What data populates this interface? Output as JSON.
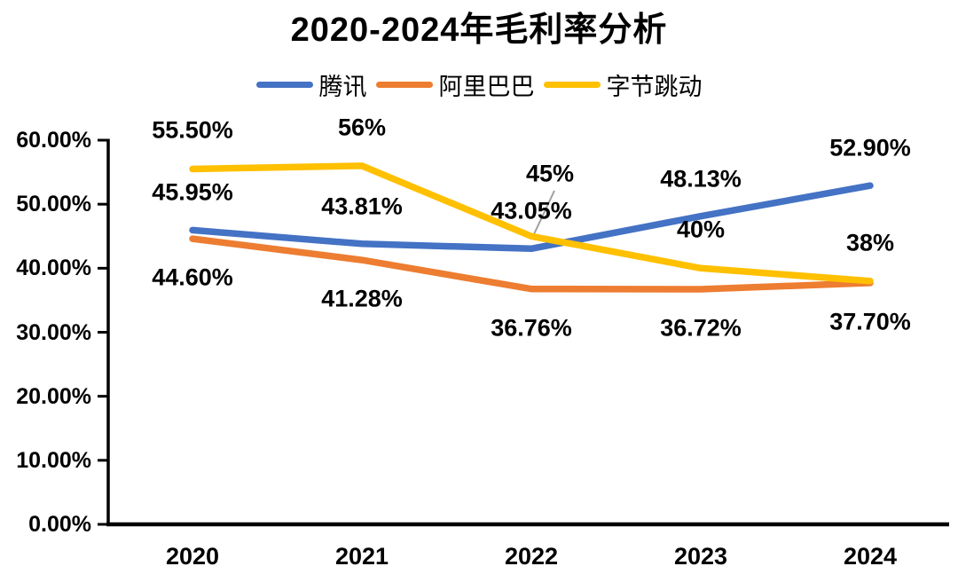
{
  "chart_data": {
    "type": "line",
    "title": "2020-2024年毛利率分析",
    "categories": [
      "2020",
      "2021",
      "2022",
      "2023",
      "2024"
    ],
    "series": [
      {
        "name": "腾讯",
        "color": "#4472C4",
        "values": [
          45.95,
          43.81,
          43.05,
          48.13,
          52.9
        ],
        "labels": [
          "45.95%",
          "43.81%",
          "43.05%",
          "48.13%",
          "52.90%"
        ]
      },
      {
        "name": "阿里巴巴",
        "color": "#ED7D31",
        "values": [
          44.6,
          41.28,
          36.76,
          36.72,
          37.7
        ],
        "labels": [
          "44.60%",
          "41.28%",
          "36.76%",
          "36.72%",
          "37.70%"
        ]
      },
      {
        "name": "字节跳动",
        "color": "#FFC000",
        "values": [
          55.5,
          56,
          45,
          40,
          38
        ],
        "labels": [
          "55.50%",
          "56%",
          "45%",
          "40%",
          "38%"
        ]
      }
    ],
    "y_axis": {
      "min": 0,
      "max": 60,
      "tick_labels": [
        "60.00%",
        "50.00%",
        "40.00%",
        "30.00%",
        "20.00%",
        "10.00%",
        "0.00%"
      ]
    },
    "xlabel": "",
    "ylabel": "",
    "legend_position": "top",
    "grid": false,
    "axis_color": "#000000",
    "leader_line_color": "#a0a0a0"
  }
}
